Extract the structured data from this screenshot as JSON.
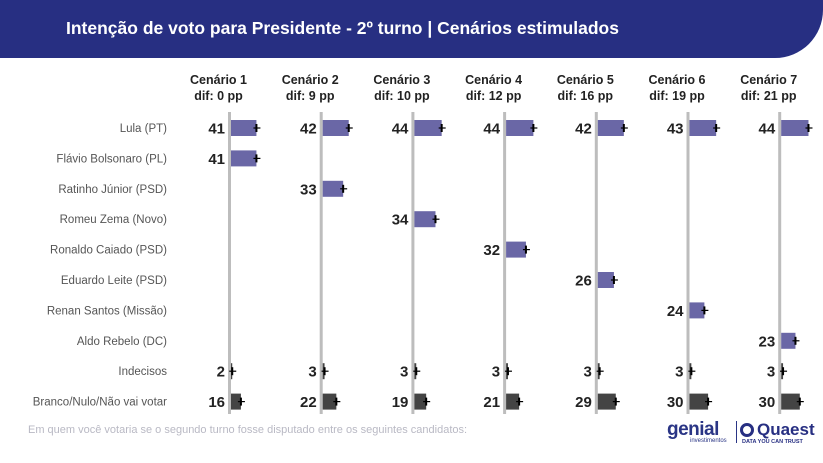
{
  "header": {
    "title": "Intenção de voto para Presidente - 2º turno | Cenários estimulados"
  },
  "footnote": "Em quem você votaria se o segundo turno fosse disputado entre os seguintes candidatos:",
  "logos": {
    "genial": "genial",
    "genial_sub": "investimentos",
    "quaest": "Quaest",
    "quaest_sub": "DATA YOU CAN TRUST"
  },
  "colors": {
    "header_bg": "#272f82",
    "candidate_bar": "#6a67a6",
    "other_bar": "#444444",
    "axis_line": "#bdbdbd"
  },
  "chart_data": {
    "type": "bar",
    "orientation": "horizontal",
    "unit": "%",
    "scenarios": [
      {
        "name": "Cenário 1",
        "dif": "dif: 0 pp"
      },
      {
        "name": "Cenário 2",
        "dif": "dif: 9 pp"
      },
      {
        "name": "Cenário 3",
        "dif": "dif: 10 pp"
      },
      {
        "name": "Cenário 4",
        "dif": "dif: 12 pp"
      },
      {
        "name": "Cenário 5",
        "dif": "dif: 16 pp"
      },
      {
        "name": "Cenário 6",
        "dif": "dif: 19 pp"
      },
      {
        "name": "Cenário 7",
        "dif": "dif: 21 pp"
      }
    ],
    "rows": [
      {
        "label": "Lula (PT)",
        "kind": "candidate",
        "values": [
          41,
          42,
          44,
          44,
          42,
          43,
          44
        ]
      },
      {
        "label": "Flávio Bolsonaro (PL)",
        "kind": "candidate",
        "values": [
          41,
          null,
          null,
          null,
          null,
          null,
          null
        ]
      },
      {
        "label": "Ratinho Júnior (PSD)",
        "kind": "candidate",
        "values": [
          null,
          33,
          null,
          null,
          null,
          null,
          null
        ]
      },
      {
        "label": "Romeu Zema (Novo)",
        "kind": "candidate",
        "values": [
          null,
          null,
          34,
          null,
          null,
          null,
          null
        ]
      },
      {
        "label": "Ronaldo Caiado (PSD)",
        "kind": "candidate",
        "values": [
          null,
          null,
          null,
          32,
          null,
          null,
          null
        ]
      },
      {
        "label": "Eduardo Leite (PSD)",
        "kind": "candidate",
        "values": [
          null,
          null,
          null,
          null,
          26,
          null,
          null
        ]
      },
      {
        "label": "Renan Santos (Missão)",
        "kind": "candidate",
        "values": [
          null,
          null,
          null,
          null,
          null,
          24,
          null
        ]
      },
      {
        "label": "Aldo Rebelo (DC)",
        "kind": "candidate",
        "values": [
          null,
          null,
          null,
          null,
          null,
          null,
          23
        ]
      },
      {
        "label": "Indecisos",
        "kind": "other",
        "values": [
          2,
          3,
          3,
          3,
          3,
          3,
          3
        ]
      },
      {
        "label": "Branco/Nulo/Não vai votar",
        "kind": "other",
        "values": [
          16,
          22,
          19,
          21,
          29,
          30,
          30
        ]
      }
    ]
  }
}
